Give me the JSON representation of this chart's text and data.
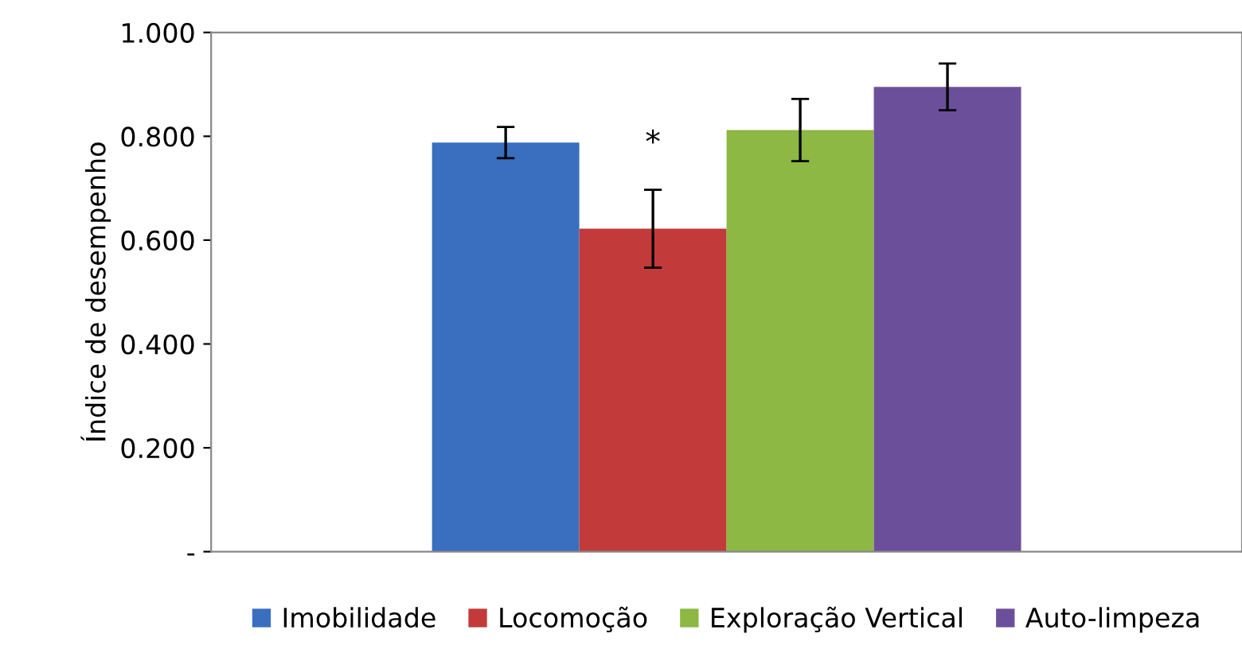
{
  "chart_data": {
    "type": "bar",
    "ylabel": "Índice de desempenho",
    "categories": [
      null
    ],
    "series": [
      {
        "name": "Imobilidade",
        "color": "#3a6fbf",
        "values": [
          0.788
        ],
        "errors": [
          0.03
        ]
      },
      {
        "name": "Locomoção",
        "color": "#c33a3a",
        "values": [
          0.622
        ],
        "errors": [
          0.075
        ]
      },
      {
        "name": "Exploração Vertical",
        "color": "#8cb843",
        "values": [
          0.812
        ],
        "errors": [
          0.06
        ]
      },
      {
        "name": "Auto-limpeza",
        "color": "#6c4f9a",
        "values": [
          0.895
        ],
        "errors": [
          0.045
        ]
      }
    ],
    "ylim": [
      0,
      1
    ],
    "yticks": [
      {
        "value": 0,
        "label": "-"
      },
      {
        "value": 0.2,
        "label": "0.200"
      },
      {
        "value": 0.4,
        "label": "0.400"
      },
      {
        "value": 0.6,
        "label": "0.600"
      },
      {
        "value": 0.8,
        "label": "0.800"
      },
      {
        "value": 1,
        "label": "1.000"
      }
    ],
    "annotations": [
      "*"
    ],
    "grid": false,
    "legend": "bottom"
  }
}
